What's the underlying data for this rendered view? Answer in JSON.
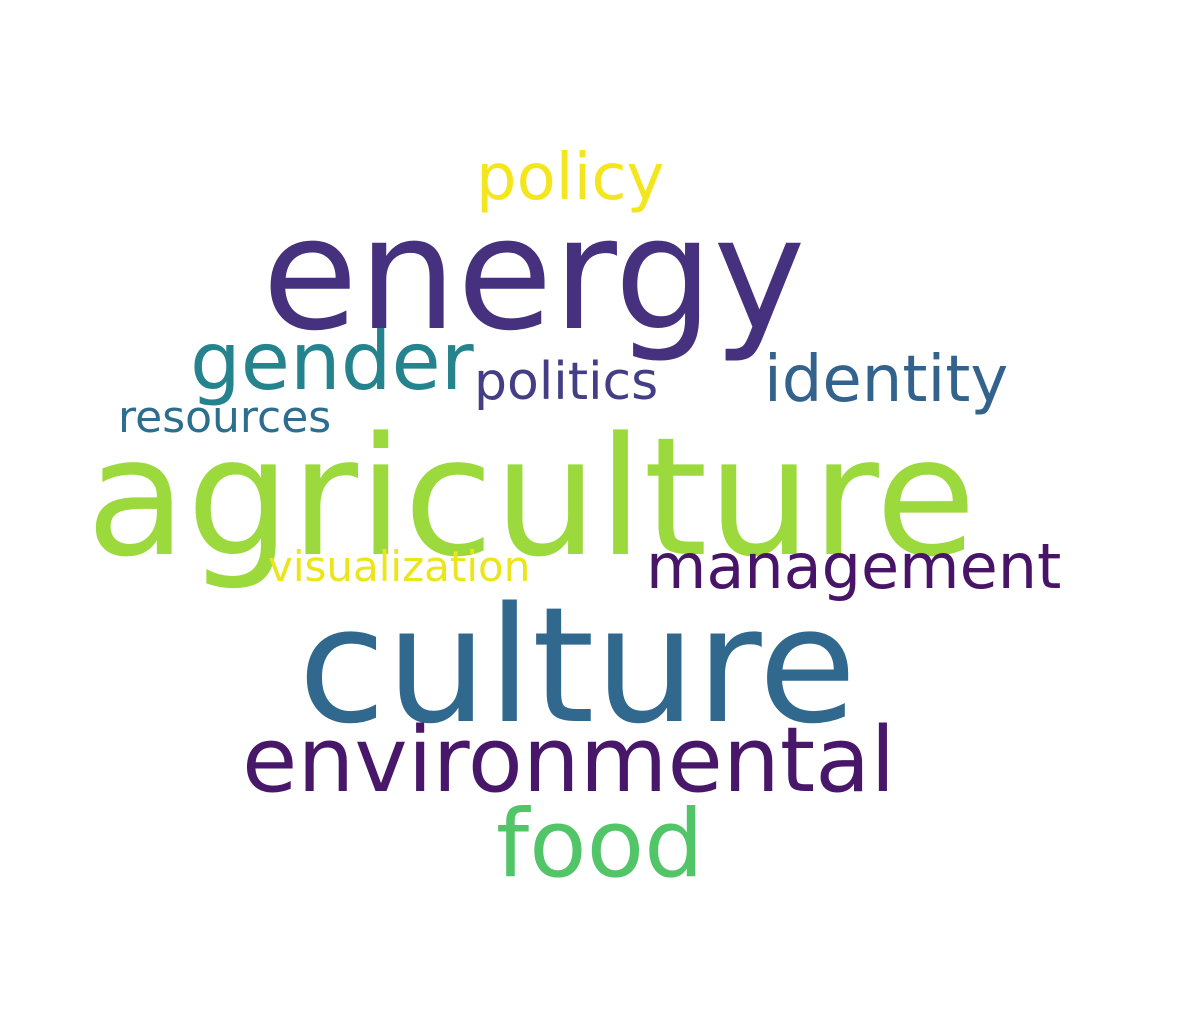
{
  "background_color": "#ffffff",
  "words": [
    {
      "key": "energy",
      "text": "energy",
      "color": "#46317e"
    },
    {
      "key": "agriculture",
      "text": "agriculture",
      "color": "#9bd93c"
    },
    {
      "key": "culture",
      "text": "culture",
      "color": "#30688e"
    },
    {
      "key": "environmental",
      "text": "environmental",
      "color": "#481769"
    },
    {
      "key": "food",
      "text": "food",
      "color": "#52c569"
    },
    {
      "key": "gender",
      "text": "gender",
      "color": "#25838e"
    },
    {
      "key": "policy",
      "text": "policy",
      "color": "#f4e61e"
    },
    {
      "key": "identity",
      "text": "identity",
      "color": "#33638d"
    },
    {
      "key": "politics",
      "text": "politics",
      "color": "#433e85"
    },
    {
      "key": "resources",
      "text": "resources",
      "color": "#2d6e8e"
    },
    {
      "key": "visualization",
      "text": "visualization",
      "color": "#ece51b"
    },
    {
      "key": "management",
      "text": "management",
      "color": "#481467"
    }
  ]
}
